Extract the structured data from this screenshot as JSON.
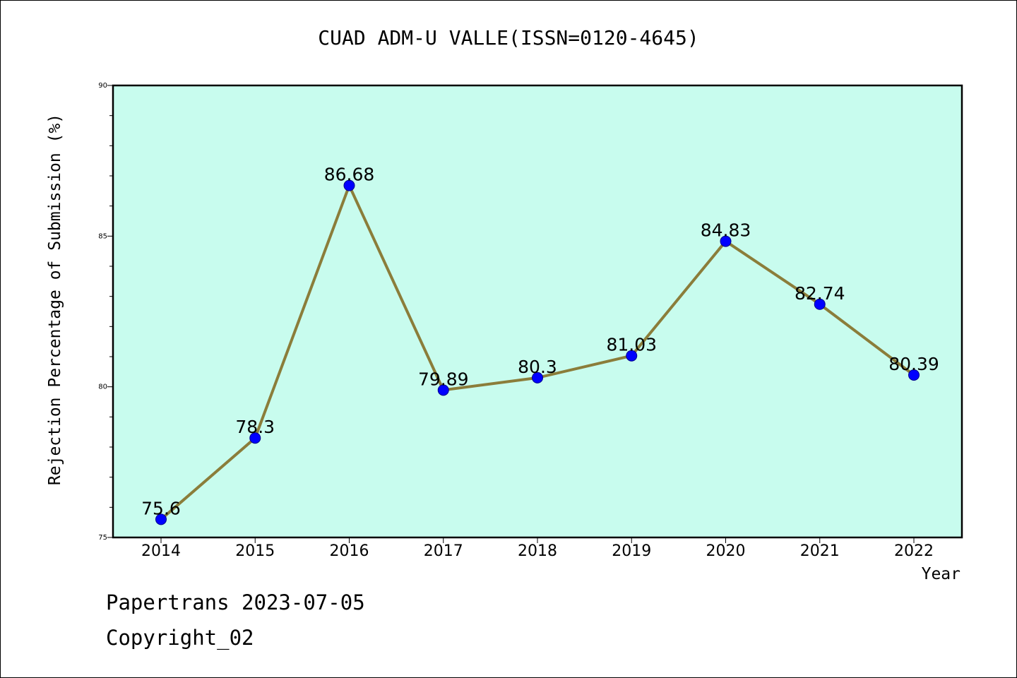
{
  "footer": {
    "line1": "Papertrans 2023-07-05",
    "line2": "Copyright_02"
  },
  "colors": {
    "plot_background": "#c8fcee",
    "line": "#8b7d3a",
    "marker": "#0000ff",
    "marker_edge": "#00008b"
  },
  "chart_data": {
    "type": "line",
    "title": "CUAD ADM-U VALLE(ISSN=0120-4645)",
    "xlabel": "Year",
    "ylabel": "Rejection Percentage of Submission (%)",
    "x": [
      "2014",
      "2015",
      "2016",
      "2017",
      "2018",
      "2019",
      "2020",
      "2021",
      "2022"
    ],
    "data_labels": [
      "75.6",
      "78.3",
      "86.68",
      "79.89",
      "80.3",
      "81.03",
      "84.83",
      "82.74",
      "80.39"
    ],
    "values": [
      75.6,
      78.3,
      86.68,
      79.89,
      80.3,
      81.03,
      84.83,
      82.74,
      80.39
    ],
    "ylim": [
      75,
      90
    ],
    "yticks": [
      "75",
      "80",
      "85",
      "90"
    ],
    "grid": false,
    "legend": "none"
  }
}
